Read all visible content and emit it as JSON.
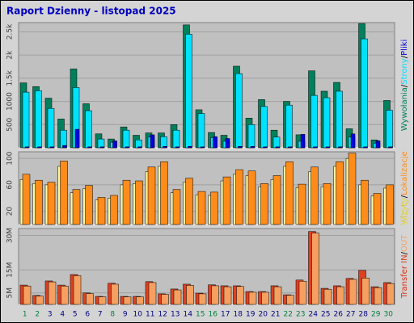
{
  "title": "Raport Dzienny -  listopad 2025",
  "chart_data": [
    {
      "type": "bar",
      "separator": "/",
      "ylim": [
        0,
        2700
      ],
      "yticks": [
        {
          "value": 500,
          "label": "500"
        },
        {
          "value": 1000,
          "label": "1000"
        },
        {
          "value": 1500,
          "label": "1.5k"
        },
        {
          "value": 2000,
          "label": "2k"
        },
        {
          "value": 2500,
          "label": "2.5k"
        }
      ],
      "grid": true,
      "series": [
        {
          "name": "Wywołania",
          "color": "#00805c",
          "values": [
            1400,
            1320,
            1070,
            620,
            1700,
            950,
            300,
            190,
            450,
            270,
            320,
            320,
            500,
            2650,
            820,
            330,
            270,
            1760,
            640,
            1040,
            380,
            1000,
            280,
            1660,
            1220,
            1410,
            410,
            2680,
            170,
            1020
          ]
        },
        {
          "name": "Strony",
          "color": "#00e0ff",
          "values": [
            1200,
            1230,
            850,
            380,
            1300,
            800,
            190,
            120,
            380,
            170,
            230,
            240,
            380,
            2450,
            740,
            220,
            140,
            1600,
            500,
            890,
            230,
            920,
            140,
            1130,
            1080,
            1220,
            230,
            2350,
            100,
            810
          ]
        },
        {
          "name": "Pliki",
          "color": "#0000e0",
          "values": [
            20,
            20,
            20,
            50,
            400,
            20,
            20,
            150,
            20,
            20,
            280,
            30,
            20,
            30,
            20,
            240,
            200,
            30,
            30,
            20,
            20,
            20,
            290,
            20,
            20,
            20,
            300,
            20,
            150,
            20
          ]
        }
      ]
    },
    {
      "type": "bar",
      "separator": "/",
      "ylim": [
        0,
        110
      ],
      "yticks": [
        20,
        60,
        100
      ],
      "grid": true,
      "series": [
        {
          "name": "Wizyty",
          "color": "#fff8a0",
          "values": [
            68,
            62,
            60,
            88,
            48,
            54,
            37,
            40,
            60,
            62,
            80,
            88,
            48,
            64,
            45,
            44,
            66,
            76,
            74,
            57,
            68,
            88,
            56,
            80,
            57,
            88,
            100,
            60,
            43,
            55
          ]
        },
        {
          "name": "Lokalizacje",
          "color": "#ff8c1a",
          "values": [
            76,
            67,
            64,
            96,
            53,
            59,
            41,
            44,
            67,
            66,
            87,
            95,
            53,
            70,
            50,
            49,
            72,
            83,
            81,
            62,
            74,
            95,
            61,
            87,
            62,
            95,
            108,
            67,
            47,
            60
          ]
        }
      ]
    },
    {
      "type": "bar",
      "separator": "/",
      "legend_title": "Transfer",
      "legend_title_color": "#e03010",
      "ylim": [
        0,
        33000000
      ],
      "yticks": [
        {
          "value": 5000000,
          "label": "5M"
        },
        {
          "value": 15000000,
          "label": "15M"
        },
        {
          "value": 30000000,
          "label": "30M"
        }
      ],
      "grid": true,
      "categories": [
        "1",
        "2",
        "3",
        "4",
        "5",
        "6",
        "7",
        "8",
        "9",
        "10",
        "11",
        "12",
        "13",
        "14",
        "15",
        "16",
        "17",
        "18",
        "19",
        "20",
        "21",
        "22",
        "23",
        "24",
        "25",
        "26",
        "27",
        "28",
        "29",
        "30"
      ],
      "category_colors": [
        "#008040",
        "#008040",
        "#000080",
        "#000080",
        "#000080",
        "#000080",
        "#000080",
        "#008040",
        "#000080",
        "#000080",
        "#000080",
        "#000080",
        "#000080",
        "#000080",
        "#008040",
        "#008040",
        "#000080",
        "#000080",
        "#000080",
        "#000080",
        "#000080",
        "#008040",
        "#008040",
        "#000080",
        "#000080",
        "#000080",
        "#000080",
        "#000080",
        "#008040",
        "#008040"
      ],
      "series": [
        {
          "name": "IN",
          "color": "#e04020",
          "values": [
            8400000,
            3900000,
            10200000,
            8400000,
            13000000,
            5000000,
            3500000,
            9200000,
            3500000,
            3500000,
            9900000,
            4600000,
            6700000,
            8800000,
            4900000,
            8500000,
            8100000,
            8100000,
            5600000,
            5600000,
            8100000,
            4200000,
            10600000,
            31700000,
            7000000,
            8100000,
            11300000,
            14800000,
            7700000,
            9500000
          ]
        },
        {
          "name": "OUT",
          "color": "#f5a060",
          "values": [
            8000000,
            3600000,
            9800000,
            8000000,
            12500000,
            4700000,
            3300000,
            8800000,
            3300000,
            3300000,
            9500000,
            4400000,
            6300000,
            8300000,
            4600000,
            8100000,
            7700000,
            7800000,
            5300000,
            5300000,
            7700000,
            4000000,
            10100000,
            31000000,
            6600000,
            7700000,
            10900000,
            11500000,
            7300000,
            9100000
          ]
        }
      ]
    }
  ]
}
